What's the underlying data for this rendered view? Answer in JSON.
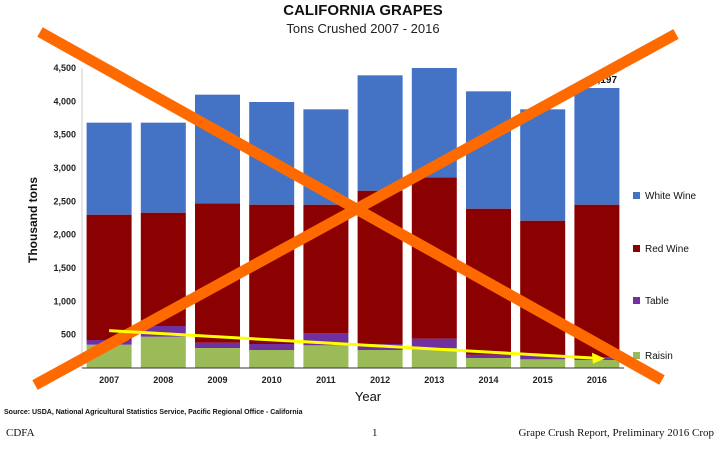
{
  "chart_data": {
    "type": "bar",
    "stacked": true,
    "title": "CALIFORNIA GRAPES",
    "subtitle": "Tons Crushed  2007 - 2016",
    "xlabel": "Year",
    "ylabel": "Thousand tons",
    "ylim": [
      0,
      4500
    ],
    "yticks": [
      "500",
      "1,000",
      "1,500",
      "2,000",
      "2,500",
      "3,000",
      "3,500",
      "4,000",
      "4,500"
    ],
    "grid": false,
    "legend_position": "right",
    "categories": [
      "2007",
      "2008",
      "2009",
      "2010",
      "2011",
      "2012",
      "2013",
      "2014",
      "2015",
      "2016"
    ],
    "series": [
      {
        "name": "Raisin",
        "color": "#9bbb59",
        "values": [
          350,
          470,
          300,
          270,
          340,
          270,
          300,
          150,
          130,
          120
        ]
      },
      {
        "name": "Table",
        "color": "#7030a0",
        "values": [
          70,
          160,
          80,
          90,
          180,
          90,
          140,
          50,
          50,
          40
        ]
      },
      {
        "name": "Red Wine",
        "color": "#8b0000",
        "values": [
          1880,
          1700,
          2090,
          2090,
          1930,
          2300,
          2420,
          2190,
          2030,
          2290
        ]
      },
      {
        "name": "White Wine",
        "color": "#4472c4",
        "values": [
          1380,
          1350,
          1630,
          1540,
          1430,
          1730,
          1640,
          1760,
          1670,
          1750
        ]
      }
    ],
    "annotations": {
      "bar_label_2016": "4,197",
      "trend_line": {
        "from": {
          "x": "2007",
          "y": 560
        },
        "to": {
          "x": "2016",
          "y": 140
        },
        "color": "#ffff00"
      },
      "cross_out": {
        "color": "#ff6a00"
      }
    }
  },
  "source_note": "Source: USDA, National Agricultural Statistics Service, Pacific Regional Office - California",
  "footer": {
    "left": "CDFA",
    "page": "1",
    "right": "Grape Crush Report, Preliminary 2016 Crop"
  }
}
